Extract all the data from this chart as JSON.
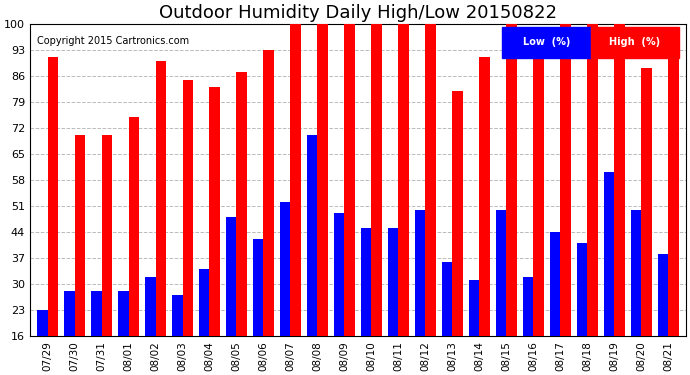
{
  "title": "Outdoor Humidity Daily High/Low 20150822",
  "copyright": "Copyright 2015 Cartronics.com",
  "categories": [
    "07/29",
    "07/30",
    "07/31",
    "08/01",
    "08/02",
    "08/03",
    "08/04",
    "08/05",
    "08/06",
    "08/07",
    "08/08",
    "08/09",
    "08/10",
    "08/11",
    "08/12",
    "08/13",
    "08/14",
    "08/15",
    "08/16",
    "08/17",
    "08/18",
    "08/19",
    "08/20",
    "08/21"
  ],
  "high_values": [
    91,
    70,
    70,
    75,
    90,
    85,
    83,
    87,
    93,
    100,
    100,
    100,
    100,
    100,
    100,
    82,
    91,
    100,
    97,
    100,
    100,
    100,
    88,
    93
  ],
  "low_values": [
    23,
    28,
    28,
    28,
    32,
    27,
    34,
    48,
    42,
    52,
    70,
    49,
    45,
    45,
    50,
    36,
    31,
    50,
    32,
    44,
    41,
    60,
    50,
    38
  ],
  "high_color": "#FF0000",
  "low_color": "#0000FF",
  "bg_color": "#FFFFFF",
  "plot_bg_color": "#FFFFFF",
  "grid_color": "#BBBBBB",
  "yticks": [
    16,
    23,
    30,
    37,
    44,
    51,
    58,
    65,
    72,
    79,
    86,
    93,
    100
  ],
  "ymin": 16,
  "ymax": 100,
  "title_fontsize": 13,
  "legend_label_low": "Low  (%)",
  "legend_label_high": "High  (%)"
}
